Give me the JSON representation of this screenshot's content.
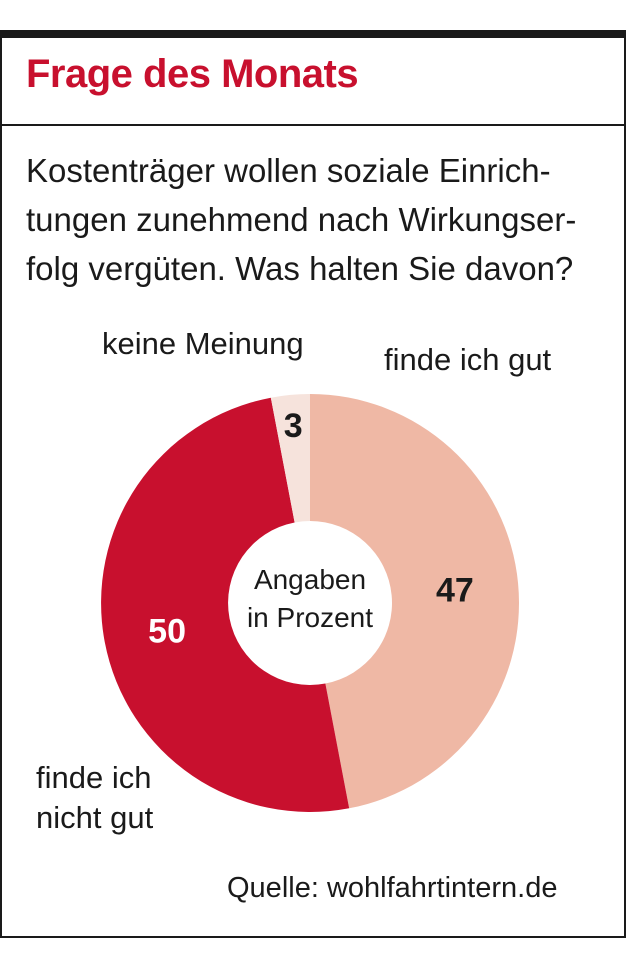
{
  "header": {
    "title": "Frage des Monats"
  },
  "question_lines": [
    "Kostenträger wollen soziale Einrich-",
    "tungen zunehmend nach Wirkungser-",
    "folg vergüten. Was halten Sie davon?"
  ],
  "chart_data": {
    "type": "pie",
    "variant": "donut",
    "center_label_lines": [
      "Angaben",
      "in Prozent"
    ],
    "unit": "Prozent",
    "segments": [
      {
        "label": "finde ich gut",
        "value": 47,
        "color": "#efb8a5",
        "label_color": "#1a1a1a"
      },
      {
        "label_lines": [
          "finde ich",
          "nicht gut"
        ],
        "value": 50,
        "color": "#c8102e",
        "label_color": "#ffffff"
      },
      {
        "label": "keine Meinung",
        "value": 3,
        "color": "#f6e3dc",
        "label_color": "#1a1a1a"
      }
    ]
  },
  "source": "Quelle: wohlfahrtintern.de",
  "colors": {
    "accent": "#c8102e",
    "text": "#1a1a1a"
  }
}
